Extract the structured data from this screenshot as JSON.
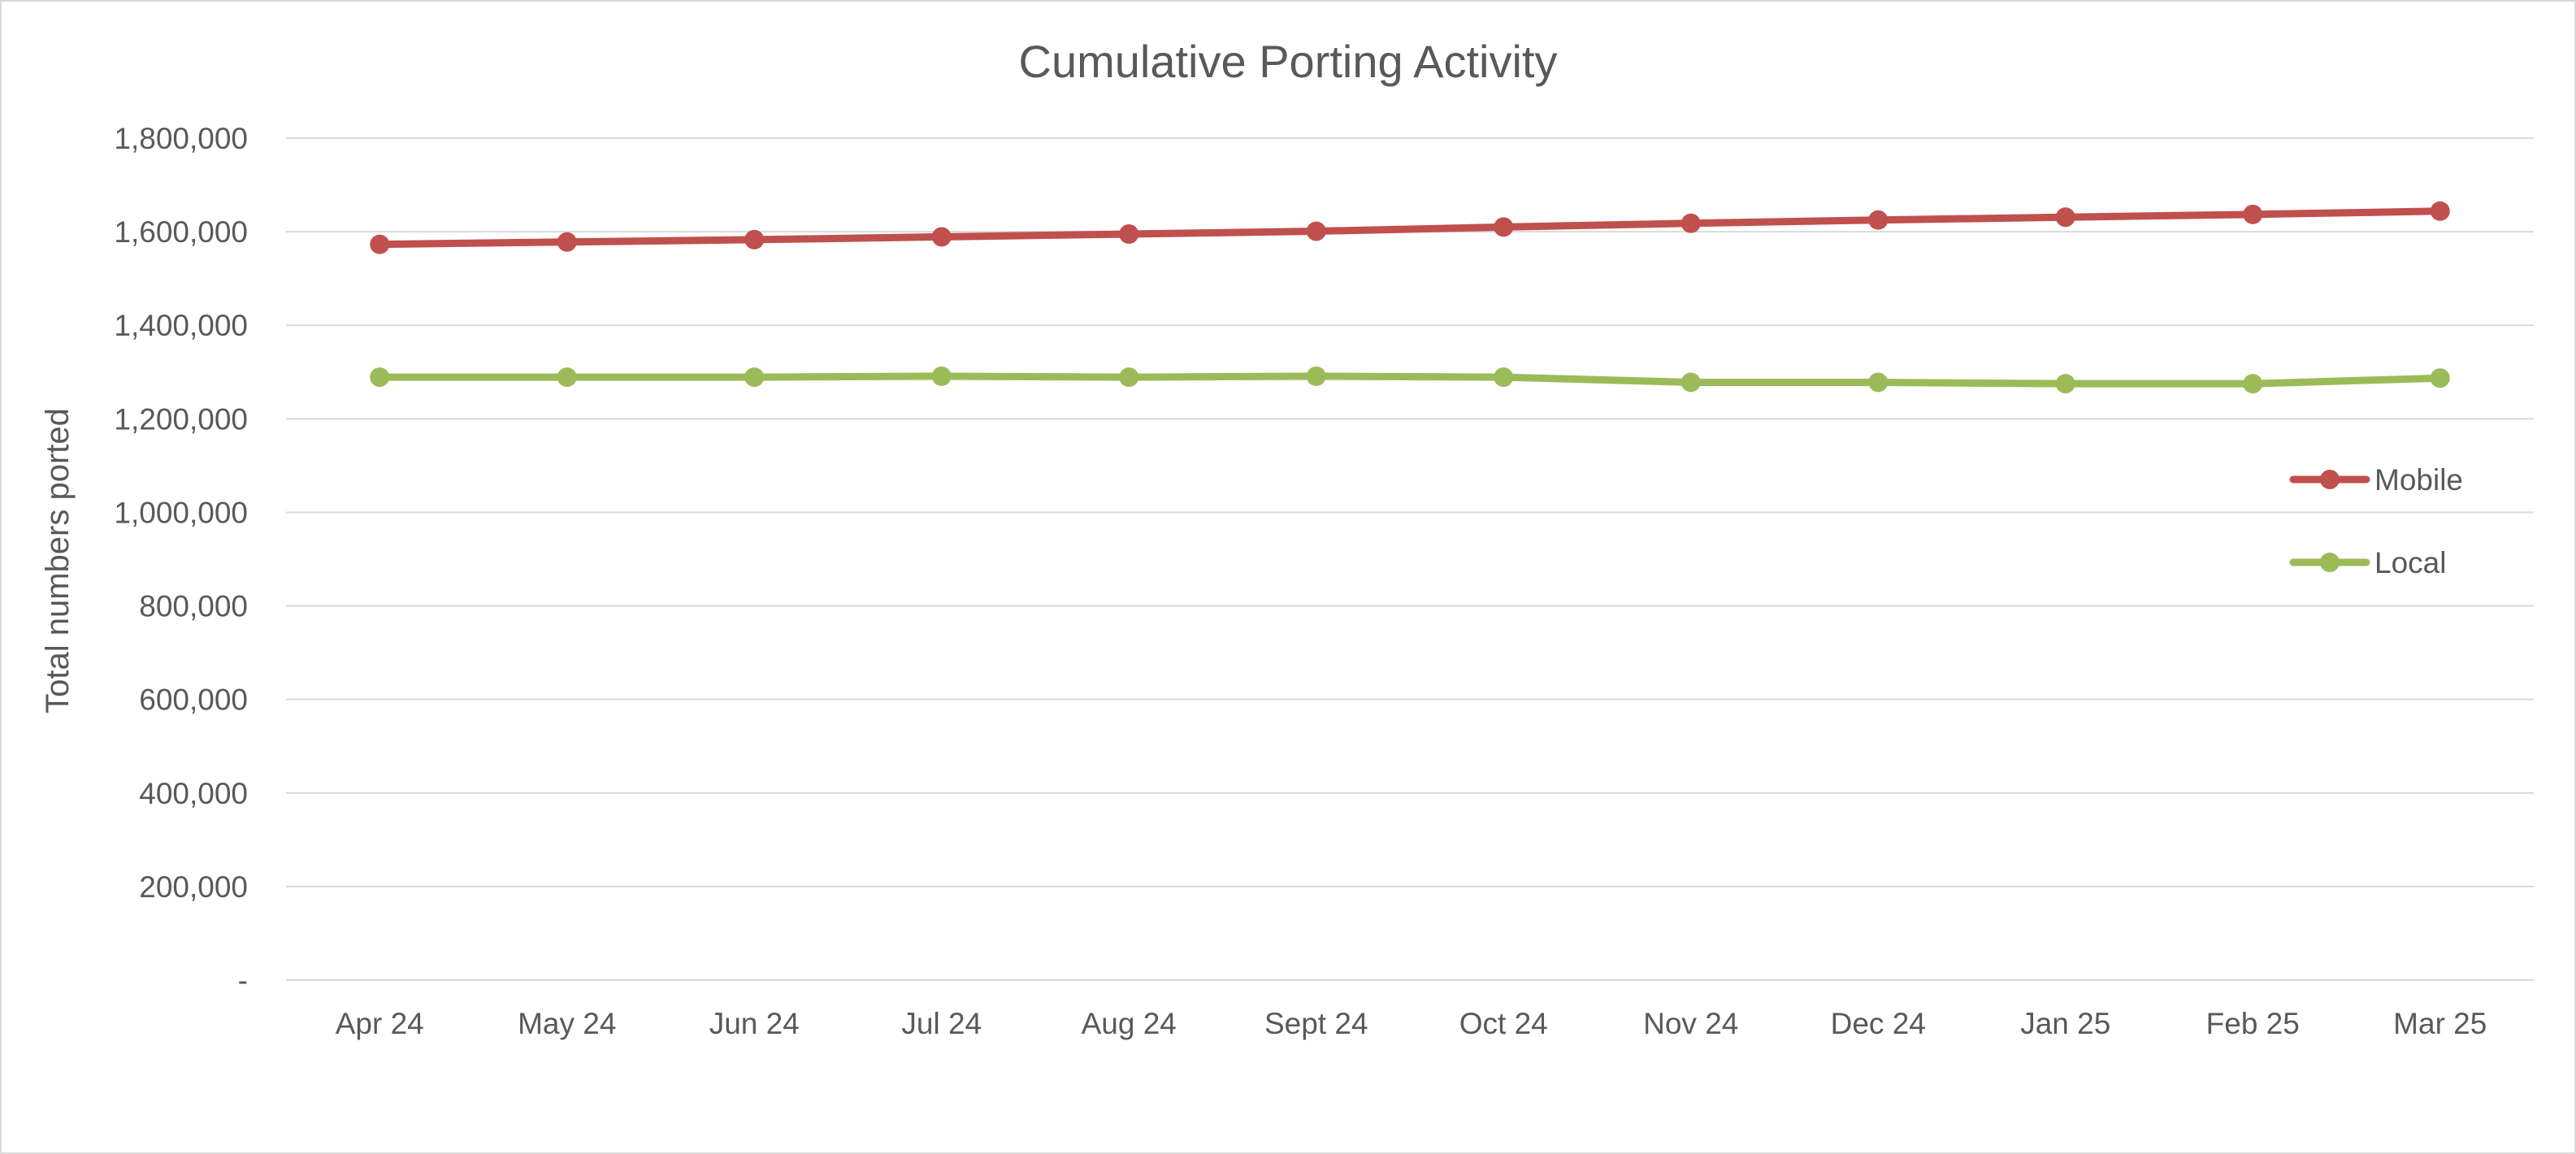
{
  "chart_data": {
    "type": "line",
    "title": "Cumulative Porting Activity",
    "xlabel": "",
    "ylabel": "Total numbers ported",
    "categories": [
      "Apr 24",
      "May 24",
      "Jun 24",
      "Jul 24",
      "Aug 24",
      "Sept 24",
      "Oct 24",
      "Nov 24",
      "Dec 24",
      "Jan 25",
      "Feb 25",
      "Mar 25"
    ],
    "ylim": [
      0,
      1800000
    ],
    "yticks": [
      0,
      200000,
      400000,
      600000,
      800000,
      1000000,
      1200000,
      1400000,
      1600000,
      1800000
    ],
    "ytick_labels": [
      "-",
      "200,000",
      "400,000",
      "600,000",
      "800,000",
      "1,000,000",
      "1,200,000",
      "1,400,000",
      "1,600,000",
      "1,800,000"
    ],
    "grid": true,
    "legend_position": "right",
    "series": [
      {
        "name": "Mobile",
        "color": "#c0504d",
        "values": [
          1573000,
          1578000,
          1583000,
          1589000,
          1595000,
          1601000,
          1610000,
          1618000,
          1625000,
          1631000,
          1637000,
          1644000
        ]
      },
      {
        "name": "Local",
        "color": "#9bbb59",
        "values": [
          1289000,
          1289000,
          1289000,
          1291000,
          1289000,
          1291000,
          1289000,
          1278000,
          1278000,
          1275000,
          1275000,
          1287000
        ]
      }
    ]
  }
}
